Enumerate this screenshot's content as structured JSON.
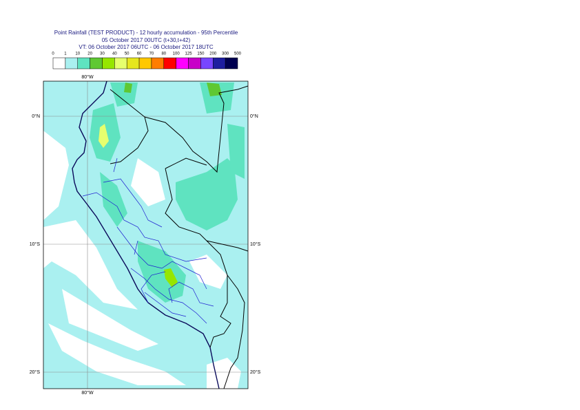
{
  "header": {
    "title": "Point Rainfall (TEST PRODUCT) - 12 hourly accumulation - 95th Percentile",
    "run": "05 October 2017 00UTC (t+30,t+42)",
    "valid_time": "VT: 06 October 2017 06UTC - 06 October 2017 18UTC"
  },
  "legend": {
    "labels": [
      0,
      1,
      10,
      20,
      30,
      40,
      50,
      60,
      70,
      80,
      100,
      125,
      150,
      200,
      300,
      500
    ],
    "colors": [
      "#ffffff",
      "#aaf0f0",
      "#5fe3c0",
      "#5fc832",
      "#96e600",
      "#e6ff6e",
      "#e6e61e",
      "#ffc800",
      "#ff7d00",
      "#ff0000",
      "#ff00ff",
      "#c800c8",
      "#7846ff",
      "#1e1ea0",
      "#000050"
    ]
  },
  "map": {
    "lon_label_top": "80°W",
    "lon_label_bottom": "80°W",
    "lat_labels_left": [
      "0°N",
      "10°S",
      "20°S"
    ],
    "lat_labels_right": [
      "0°N",
      "10°S",
      "20°S"
    ]
  }
}
